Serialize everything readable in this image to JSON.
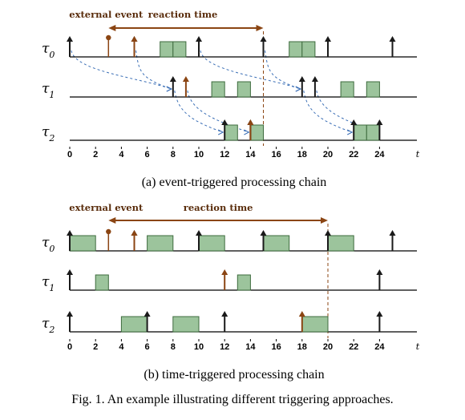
{
  "caption": "Fig. 1.  An example illustrating different triggering approaches.",
  "colors": {
    "axis": "#000000",
    "arrow": "#1a1a1a",
    "event_arrow": "#8b4513",
    "block_fill": "#9cc49c",
    "block_stroke": "#3e6b3e",
    "dashed_link": "#3b6fb6",
    "bracket": "#8b4513",
    "guide": "#8b4513"
  },
  "panels": [
    {
      "id": "a",
      "subcaption": "(a) event-triggered processing chain",
      "external_event_label": "external event",
      "reaction_time_label": "reaction time",
      "reaction": {
        "start": 3,
        "end": 15
      },
      "x_ticks": [
        0,
        2,
        4,
        6,
        8,
        10,
        12,
        14,
        16,
        18,
        20,
        22,
        24
      ],
      "x_ticks_labels": [
        "0",
        "2",
        "4",
        "6",
        "8",
        "10",
        "12",
        "14",
        "16",
        "18",
        "20",
        "22",
        "24"
      ],
      "x_axis_label": "t",
      "guide_line_at": 15,
      "tasks": [
        {
          "label": "τ0",
          "releases": [
            0,
            5,
            10,
            15,
            20,
            25
          ],
          "event_arrows": [
            5
          ],
          "external_event_at": 3,
          "executions": [
            [
              7,
              8
            ],
            [
              8,
              9
            ],
            [
              17,
              18
            ],
            [
              18,
              19
            ]
          ]
        },
        {
          "label": "τ1",
          "releases": [
            8,
            18,
            19
          ],
          "event_arrows": [
            9
          ],
          "executions": [
            [
              11,
              12
            ],
            [
              13,
              14
            ],
            [
              21,
              22
            ],
            [
              23,
              24
            ]
          ]
        },
        {
          "label": "τ2",
          "releases": [
            12,
            14,
            22,
            24
          ],
          "event_arrows": [
            14
          ],
          "executions": [
            [
              12,
              13
            ],
            [
              14,
              15
            ],
            [
              22,
              23
            ],
            [
              23,
              24
            ]
          ]
        }
      ],
      "links": [
        {
          "from_task": 0,
          "from_t": 0,
          "to_task": 1,
          "to_t": 8
        },
        {
          "from_task": 0,
          "from_t": 5,
          "to_task": 1,
          "to_t": 8
        },
        {
          "from_task": 0,
          "from_t": 10,
          "to_task": 1,
          "to_t": 18
        },
        {
          "from_task": 0,
          "from_t": 15,
          "to_task": 1,
          "to_t": 18
        },
        {
          "from_task": 1,
          "from_t": 8,
          "to_task": 2,
          "to_t": 12
        },
        {
          "from_task": 1,
          "from_t": 9,
          "to_task": 2,
          "to_t": 14
        },
        {
          "from_task": 1,
          "from_t": 18,
          "to_task": 2,
          "to_t": 22
        },
        {
          "from_task": 1,
          "from_t": 19,
          "to_task": 2,
          "to_t": 24
        }
      ]
    },
    {
      "id": "b",
      "subcaption": "(b) time-triggered processing chain",
      "external_event_label": "external event",
      "reaction_time_label": "reaction time",
      "reaction": {
        "start": 3,
        "end": 20
      },
      "x_ticks": [
        0,
        2,
        4,
        6,
        8,
        10,
        12,
        14,
        16,
        18,
        20,
        22,
        24
      ],
      "x_ticks_labels": [
        "0",
        "2",
        "4",
        "6",
        "8",
        "10",
        "12",
        "14",
        "16",
        "18",
        "20",
        "22",
        "24"
      ],
      "x_axis_label": "t",
      "guide_line_at": 20,
      "tasks": [
        {
          "label": "τ0",
          "releases": [
            0,
            5,
            10,
            15,
            20,
            25
          ],
          "event_arrows": [
            5
          ],
          "external_event_at": 3,
          "executions": [
            [
              0,
              2
            ],
            [
              6,
              8
            ],
            [
              10,
              12
            ],
            [
              15,
              17
            ],
            [
              20,
              22
            ]
          ]
        },
        {
          "label": "τ1",
          "releases": [
            0,
            24
          ],
          "event_arrows": [
            12
          ],
          "executions": [
            [
              2,
              3
            ],
            [
              13,
              14
            ]
          ]
        },
        {
          "label": "τ2",
          "releases": [
            0,
            6,
            12,
            24
          ],
          "event_arrows": [
            18
          ],
          "executions": [
            [
              4,
              6
            ],
            [
              8,
              10
            ],
            [
              18,
              20
            ]
          ]
        }
      ],
      "links": []
    }
  ]
}
